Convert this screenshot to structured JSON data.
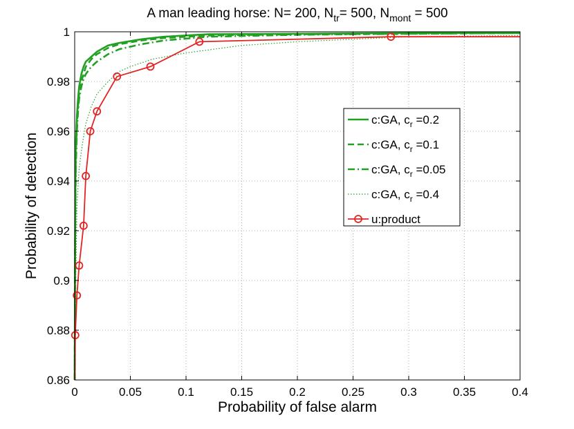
{
  "chart_data": {
    "type": "line",
    "title": {
      "parts": [
        {
          "text": "A man leading horse: N= 200, N",
          "sub": false
        },
        {
          "text": "tr",
          "sub": true
        },
        {
          "text": "= 500, N",
          "sub": false
        },
        {
          "text": "mont",
          "sub": true
        },
        {
          "text": " = 500",
          "sub": false
        }
      ]
    },
    "xlabel": "Probability of false alarm",
    "ylabel": "Probability of detection",
    "xlim": [
      0,
      0.4
    ],
    "ylim": [
      0.86,
      1
    ],
    "xticks": [
      0,
      0.05,
      0.1,
      0.15,
      0.2,
      0.25,
      0.3,
      0.35,
      0.4
    ],
    "xtick_labels": [
      "0",
      "0.05",
      "0.1",
      "0.15",
      "0.2",
      "0.25",
      "0.3",
      "0.35",
      "0.4"
    ],
    "yticks": [
      0.86,
      0.88,
      0.9,
      0.92,
      0.94,
      0.96,
      0.98,
      1
    ],
    "ytick_labels": [
      "0.86",
      "0.88",
      "0.9",
      "0.92",
      "0.94",
      "0.96",
      "0.98",
      "1"
    ],
    "grid": true,
    "legend_position": "right, upper-middle",
    "series": [
      {
        "legend": [
          {
            "text": "c:GA, c",
            "sub": false
          },
          {
            "text": "r",
            "sub": true
          },
          {
            "text": " =0.2",
            "sub": false
          }
        ],
        "color": "#22a022",
        "style": "solid",
        "width": 2.6,
        "x": [
          0,
          0.0005,
          0.001,
          0.002,
          0.003,
          0.004,
          0.006,
          0.008,
          0.01,
          0.015,
          0.02,
          0.03,
          0.04,
          0.06,
          0.08,
          0.12,
          0.2,
          0.3,
          0.4
        ],
        "y": [
          0.86,
          0.93,
          0.955,
          0.966,
          0.973,
          0.978,
          0.983,
          0.986,
          0.988,
          0.99,
          0.992,
          0.9945,
          0.9955,
          0.997,
          0.998,
          0.999,
          0.9992,
          0.9995,
          0.9995
        ]
      },
      {
        "legend": [
          {
            "text": "c:GA, c",
            "sub": false
          },
          {
            "text": "r",
            "sub": true
          },
          {
            "text": " =0.1",
            "sub": false
          }
        ],
        "color": "#22a022",
        "style": "dashed",
        "width": 2.6,
        "x": [
          0,
          0.0005,
          0.001,
          0.002,
          0.003,
          0.004,
          0.006,
          0.008,
          0.01,
          0.015,
          0.02,
          0.03,
          0.04,
          0.06,
          0.08,
          0.12,
          0.2,
          0.3,
          0.4
        ],
        "y": [
          0.86,
          0.925,
          0.95,
          0.963,
          0.97,
          0.975,
          0.98,
          0.983,
          0.986,
          0.989,
          0.991,
          0.9935,
          0.995,
          0.9965,
          0.9975,
          0.9985,
          0.999,
          0.9992,
          0.9995
        ]
      },
      {
        "legend": [
          {
            "text": "c:GA, c",
            "sub": false
          },
          {
            "text": "r",
            "sub": true
          },
          {
            "text": " =0.05",
            "sub": false
          }
        ],
        "color": "#22a022",
        "style": "dashdot",
        "width": 2.6,
        "x": [
          0,
          0.0005,
          0.001,
          0.002,
          0.003,
          0.004,
          0.006,
          0.008,
          0.01,
          0.015,
          0.02,
          0.03,
          0.04,
          0.06,
          0.08,
          0.12,
          0.2,
          0.3,
          0.4
        ],
        "y": [
          0.86,
          0.92,
          0.945,
          0.96,
          0.968,
          0.973,
          0.978,
          0.981,
          0.983,
          0.986,
          0.988,
          0.991,
          0.993,
          0.995,
          0.9965,
          0.998,
          0.9988,
          0.9992,
          0.9995
        ]
      },
      {
        "legend": [
          {
            "text": "c:GA, c",
            "sub": false
          },
          {
            "text": "r",
            "sub": true
          },
          {
            "text": " =0.4",
            "sub": false
          }
        ],
        "color": "#22a022",
        "style": "dotted",
        "width": 1.2,
        "x": [
          0,
          0.001,
          0.002,
          0.004,
          0.006,
          0.008,
          0.01,
          0.015,
          0.02,
          0.03,
          0.04,
          0.05,
          0.07,
          0.1,
          0.15,
          0.2,
          0.3,
          0.4
        ],
        "y": [
          0.86,
          0.9,
          0.93,
          0.945,
          0.952,
          0.958,
          0.963,
          0.97,
          0.975,
          0.98,
          0.984,
          0.986,
          0.989,
          0.9915,
          0.9945,
          0.996,
          0.998,
          0.9985
        ]
      },
      {
        "legend": [
          {
            "text": "u:product",
            "sub": false
          }
        ],
        "color": "#e32222",
        "style": "solid",
        "width": 1.8,
        "marker": "circle",
        "x": [
          0,
          0.0005,
          0.002,
          0.004,
          0.008,
          0.01,
          0.014,
          0.02,
          0.038,
          0.068,
          0.112,
          0.284,
          0.4
        ],
        "y": [
          0.86,
          0.878,
          0.894,
          0.906,
          0.922,
          0.942,
          0.96,
          0.968,
          0.982,
          0.986,
          0.996,
          0.998,
          0.998
        ],
        "marker_points": [
          1,
          2,
          3,
          4,
          5,
          6,
          7,
          8,
          9,
          10,
          11
        ]
      }
    ]
  }
}
